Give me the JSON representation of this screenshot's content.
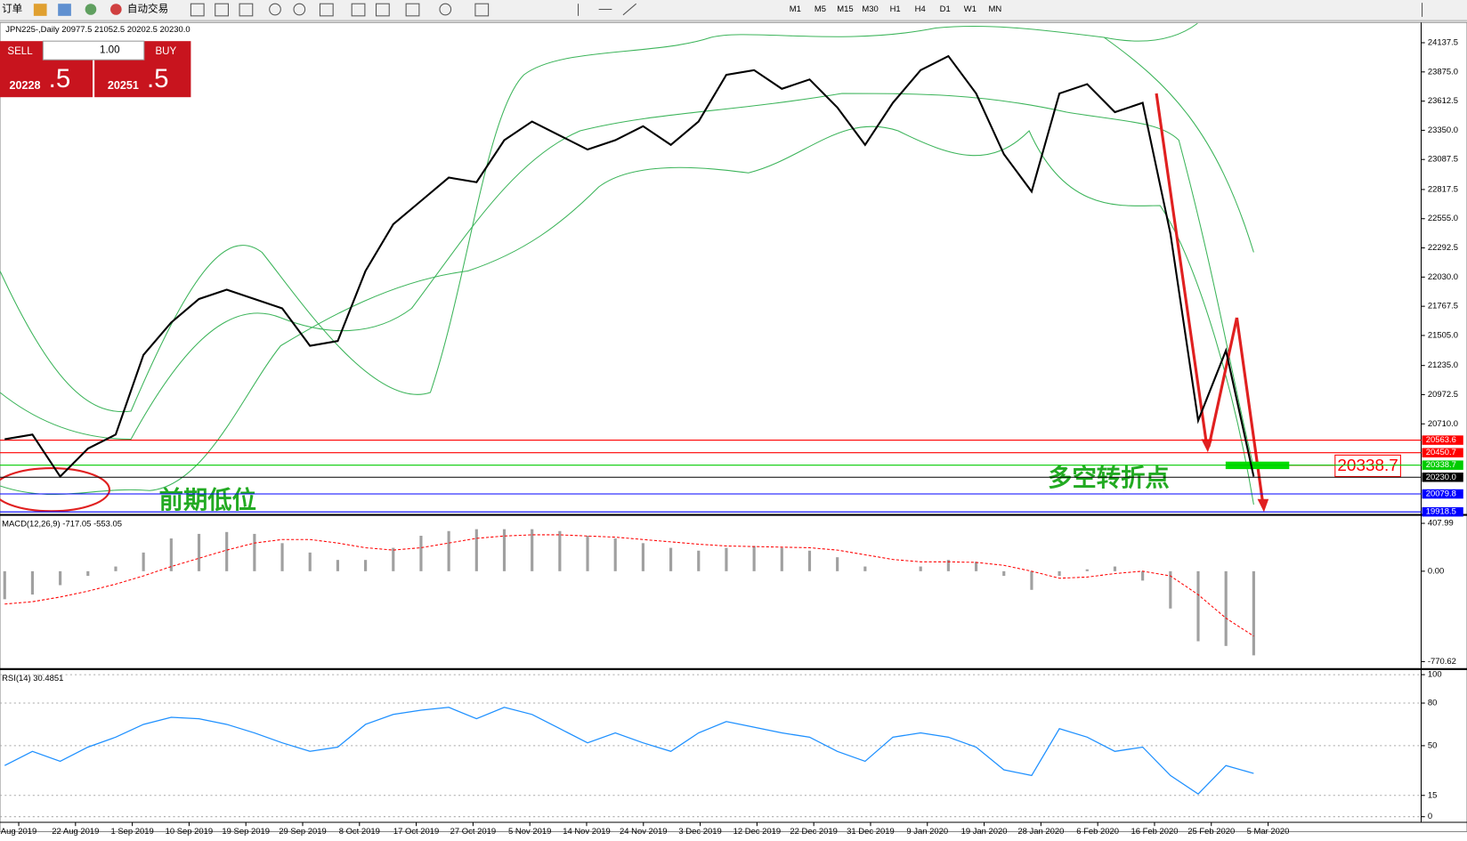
{
  "toolbar": {
    "items": [
      "订单",
      "自动交易"
    ],
    "timeframes": [
      "M1",
      "M5",
      "M15",
      "M30",
      "H1",
      "H4",
      "D1",
      "W1",
      "MN"
    ]
  },
  "trade_panel": {
    "sell": "SELL",
    "lot": "1.00",
    "buy": "BUY",
    "sell_price": "20228",
    "sell_fraction": ".5",
    "buy_price": "20251",
    "buy_fraction": ".5"
  },
  "chart_data": [
    {
      "type": "line",
      "title": "JPN225-,Daily  20977.5 21052.5 20202.5 20230.0",
      "color": "#000000",
      "values": [
        20572,
        20614,
        20236,
        20488,
        20614,
        21330,
        21622,
        21833,
        21917,
        21833,
        21749,
        21412,
        21455,
        22085,
        22505,
        22715,
        22925,
        22883,
        23261,
        23429,
        23303,
        23177,
        23261,
        23387,
        23219,
        23429,
        23849,
        23891,
        23723,
        23807,
        23555,
        23219,
        23597,
        23891,
        24017,
        23681,
        23135,
        22799,
        23681,
        23765,
        23513,
        23597,
        22421,
        20740,
        21370,
        20236
      ],
      "ylim": [
        19900,
        24320
      ],
      "yticks": [
        24137.5,
        {
          "value": 23875,
          "label": "23875.0"
        },
        23612.5,
        {
          "value": 23350,
          "label": "23350.0"
        },
        23087.5,
        22817.5,
        {
          "value": 22555,
          "label": "22555.0"
        },
        22292.5,
        {
          "value": 22030,
          "label": "22030.0"
        },
        21767.5,
        {
          "value": 21505,
          "label": "21505.0"
        },
        {
          "value": 21235,
          "label": "21235.0"
        },
        20972.5,
        {
          "value": 20710,
          "label": "20710.0"
        }
      ],
      "levels": [
        {
          "value": 20563.6,
          "color": "#ff0000"
        },
        {
          "value": 20450.7,
          "color": "#ff0000"
        },
        {
          "value": 20338.7,
          "color": "#00cc00"
        },
        {
          "value": 20230,
          "label": "20230.0",
          "color": "#000000"
        },
        {
          "value": 20079.8,
          "color": "#0000ff"
        },
        {
          "value": 19918.5,
          "color": "#0000ff"
        }
      ],
      "x_labels": [
        "Aug 2019",
        "22 Aug 2019",
        "1 Sep 2019",
        "10 Sep 2019",
        "19 Sep 2019",
        "29 Sep 2019",
        "8 Oct 2019",
        "17 Oct 2019",
        "27 Oct 2019",
        "5 Nov 2019",
        "14 Nov 2019",
        "24 Nov 2019",
        "3 Dec 2019",
        "12 Dec 2019",
        "22 Dec 2019",
        "31 Dec 2019",
        "9 Jan 2020",
        "19 Jan 2020",
        "28 Jan 2020",
        "6 Feb 2020",
        "16 Feb 2020",
        "25 Feb 2020",
        "5 Mar 2020"
      ],
      "annotations": [
        "前期低位",
        "多空转折点"
      ],
      "marker_label": 20338.7
    },
    {
      "type": "macd",
      "title": "MACD(12,26,9) -717.05 -553.05",
      "histogram": {
        "color": "#a0a0a0",
        "values": [
          -239,
          -199,
          -119,
          -40,
          40,
          159,
          279,
          318,
          334,
          318,
          239,
          159,
          96,
          96,
          199,
          302,
          342,
          358,
          358,
          358,
          342,
          302,
          279,
          239,
          199,
          175,
          199,
          215,
          199,
          175,
          119,
          40,
          0,
          40,
          96,
          80,
          -40,
          -159,
          -40,
          16,
          40,
          -80,
          -318,
          -597,
          -637,
          -717.05
        ]
      },
      "signal": {
        "color": "#ff0000",
        "values": [
          -280,
          -260,
          -220,
          -170,
          -110,
          -40,
          40,
          110,
          180,
          240,
          270,
          270,
          240,
          200,
          180,
          200,
          240,
          280,
          300,
          310,
          310,
          300,
          290,
          270,
          250,
          230,
          215,
          210,
          205,
          200,
          180,
          140,
          100,
          80,
          80,
          75,
          50,
          0,
          -60,
          -50,
          -20,
          0,
          -40,
          -200,
          -400,
          -553.05
        ]
      },
      "ylim": [
        -826,
        472
      ],
      "yticks": [
        407.99,
        {
          "value": 0,
          "label": "0.00"
        },
        -770.62
      ]
    },
    {
      "type": "rsi",
      "title": "RSI(14) 30.4851",
      "color": "#1e90ff",
      "values": [
        36,
        46,
        39,
        49,
        56,
        65,
        70,
        69,
        65,
        59,
        52,
        46,
        49,
        65,
        72,
        75,
        77,
        69,
        77,
        72,
        62,
        52,
        59,
        52,
        46,
        59,
        67,
        63,
        59,
        56,
        46,
        39,
        56,
        59,
        56,
        49,
        33,
        29,
        62,
        56,
        46,
        49,
        29,
        16,
        36,
        30.4851
      ],
      "ylim": [
        0,
        100
      ],
      "yticks": [
        100,
        80,
        50,
        15,
        0
      ],
      "grid": true
    }
  ]
}
